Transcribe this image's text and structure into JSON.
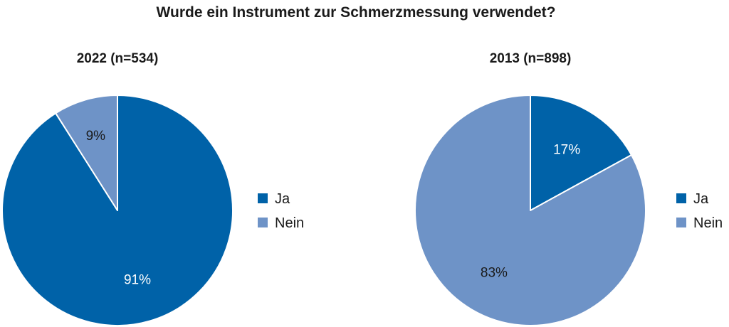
{
  "title": "Wurde ein Instrument zur Schmerzmessung verwendet?",
  "chart_data": [
    {
      "type": "pie",
      "title": "2022 (n=534)",
      "categories": [
        "Ja",
        "Nein"
      ],
      "values": [
        91,
        9
      ],
      "labels": [
        "91%",
        "9%"
      ],
      "colors": [
        "#0062a8",
        "#6e93c7"
      ],
      "start_angle_deg": 0,
      "direction": "clockwise",
      "legend": {
        "position": "right",
        "entries": [
          "Ja",
          "Nein"
        ]
      }
    },
    {
      "type": "pie",
      "title": "2013 (n=898)",
      "categories": [
        "Ja",
        "Nein"
      ],
      "values": [
        17,
        83
      ],
      "labels": [
        "17%",
        "83%"
      ],
      "colors": [
        "#0062a8",
        "#6e93c7"
      ],
      "start_angle_deg": 0,
      "direction": "clockwise",
      "legend": {
        "position": "right",
        "entries": [
          "Ja",
          "Nein"
        ]
      }
    }
  ]
}
